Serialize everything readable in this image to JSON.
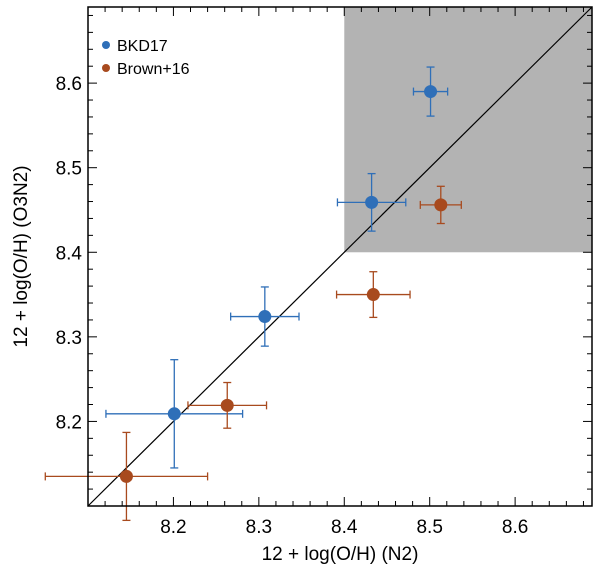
{
  "chart_data": {
    "type": "scatter",
    "xlabel": "12 + log(O/H) (N2)",
    "ylabel": "12 + log(O/H) (O3N2)",
    "xlim": [
      8.1,
      8.69
    ],
    "ylim": [
      8.1,
      8.69
    ],
    "xticks": [
      "8.2",
      "8.3",
      "8.4",
      "8.5",
      "8.6"
    ],
    "yticks": [
      "8.2",
      "8.3",
      "8.4",
      "8.5",
      "8.6"
    ],
    "legend_position": "top-left",
    "grid": false,
    "shaded_region": {
      "x": [
        8.4,
        8.69
      ],
      "y": [
        8.4,
        8.69
      ],
      "color": "#b3b3b3"
    },
    "reference_line": "one-to-one",
    "series": [
      {
        "name": "BKD17",
        "color": "#2f6fb8",
        "points": [
          {
            "x": 8.201,
            "y": 8.209,
            "xerr": 0.08,
            "yerr": 0.064
          },
          {
            "x": 8.307,
            "y": 8.324,
            "xerr": 0.04,
            "yerr": 0.035
          },
          {
            "x": 8.432,
            "y": 8.459,
            "xerr": 0.04,
            "yerr": 0.034
          },
          {
            "x": 8.501,
            "y": 8.59,
            "xerr": 0.02,
            "yerr": 0.029
          }
        ]
      },
      {
        "name": "Brown+16",
        "color": "#a84a1e",
        "points": [
          {
            "x": 8.145,
            "y": 8.135,
            "xerr": 0.095,
            "yerr": 0.052
          },
          {
            "x": 8.263,
            "y": 8.219,
            "xerr": 0.046,
            "yerr": 0.027
          },
          {
            "x": 8.434,
            "y": 8.35,
            "xerr": 0.043,
            "yerr": 0.027
          },
          {
            "x": 8.513,
            "y": 8.456,
            "xerr": 0.024,
            "yerr": 0.022
          }
        ]
      }
    ]
  }
}
